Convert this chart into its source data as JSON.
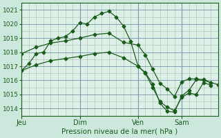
{
  "bg_color": "#cce8dd",
  "plot_bg_color": "#ddf0e8",
  "grid_color": "#aabba8",
  "grid_color_major": "#7799aa",
  "line_color": "#1a5c1a",
  "xlabel": "Pression niveau de la mer( hPa )",
  "ylim": [
    1013.5,
    1021.5
  ],
  "yticks": [
    1014,
    1015,
    1016,
    1017,
    1018,
    1019,
    1020,
    1021
  ],
  "xtick_labels": [
    "Jeu",
    "Dim",
    "Ven",
    "Sam"
  ],
  "xtick_positions": [
    0,
    8,
    16,
    22
  ],
  "vlines_x": [
    0,
    8,
    16,
    22
  ],
  "xmax": 27,
  "line1_x": [
    0,
    1,
    2,
    3,
    4,
    5,
    6,
    7,
    8,
    9,
    10,
    11,
    12,
    13,
    14,
    15,
    16,
    17,
    18,
    19,
    20,
    21,
    22,
    23,
    24,
    25,
    26,
    27
  ],
  "line1_y": [
    1016.7,
    1017.2,
    1017.9,
    1018.0,
    1018.8,
    1019.0,
    1019.1,
    1019.5,
    1020.1,
    1020.0,
    1020.5,
    1020.75,
    1020.9,
    1020.5,
    1019.85,
    1018.75,
    1017.0,
    1016.55,
    1015.75,
    1014.4,
    1013.8,
    1013.75,
    1014.9,
    1015.3,
    1016.05,
    1016.0,
    1015.85,
    1015.7
  ],
  "line2_x": [
    0,
    2,
    4,
    6,
    8,
    10,
    12,
    14,
    16,
    17,
    18,
    19,
    20,
    21,
    22,
    23,
    24,
    25,
    26
  ],
  "line2_y": [
    1017.9,
    1018.35,
    1018.65,
    1018.8,
    1019.0,
    1019.25,
    1019.35,
    1018.7,
    1018.5,
    1017.8,
    1016.8,
    1015.8,
    1015.4,
    1014.85,
    1015.9,
    1016.1,
    1016.1,
    1016.05,
    1015.85
  ],
  "line3_x": [
    0,
    2,
    4,
    6,
    8,
    10,
    12,
    14,
    16,
    17,
    18,
    19,
    20,
    21,
    22,
    23,
    24,
    25,
    26
  ],
  "line3_y": [
    1016.7,
    1017.1,
    1017.4,
    1017.55,
    1017.7,
    1017.9,
    1018.0,
    1017.6,
    1017.0,
    1016.5,
    1015.5,
    1014.5,
    1014.1,
    1013.85,
    1014.8,
    1015.1,
    1015.0,
    1015.85,
    1015.65
  ],
  "markersize": 2.5,
  "xlabel_fontsize": 7.5,
  "ytick_fontsize": 6.5,
  "xtick_fontsize": 7
}
